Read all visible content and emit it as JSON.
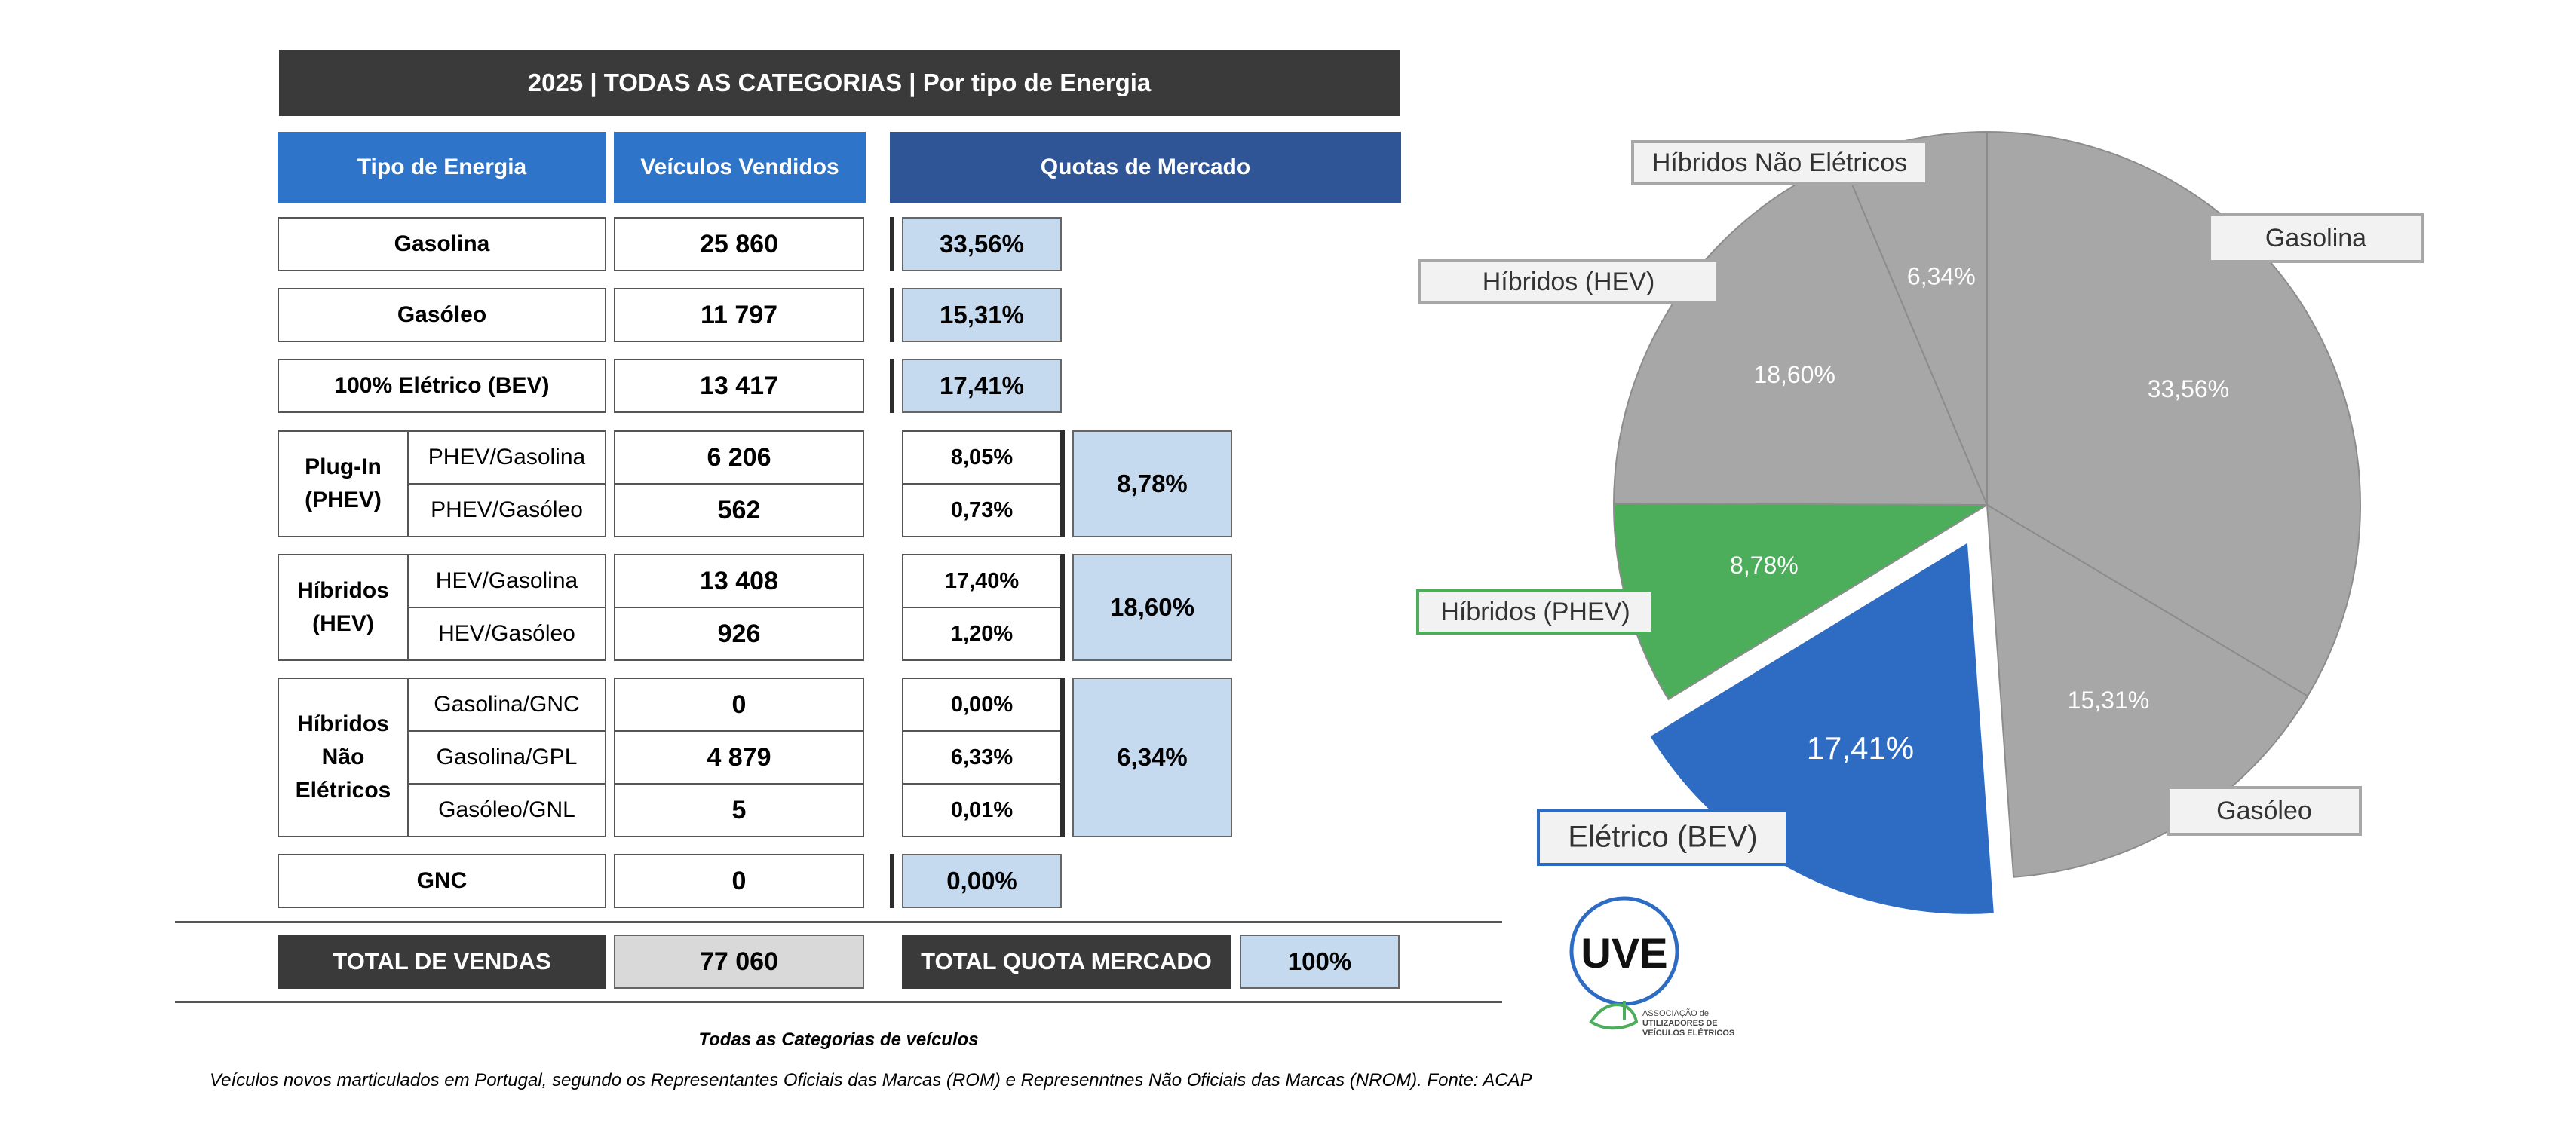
{
  "table": {
    "title": "2025 | TODAS AS CATEGORIAS | Por tipo de Energia",
    "headers": {
      "tipo": "Tipo de Energia",
      "vendidos": "Veículos Vendidos",
      "quotas": "Quotas de Mercado"
    },
    "gasolina": {
      "label": "Gasolina",
      "sold": "25 860",
      "share": "33,56%"
    },
    "gasoleo": {
      "label": "Gasóleo",
      "sold": "11 797",
      "share": "15,31%"
    },
    "bev": {
      "label": "100% Elétrico (BEV)",
      "sold": "13 417",
      "share": "17,41%"
    },
    "phev": {
      "group_line1": "Plug-In",
      "group_line2": "(PHEV)",
      "total_share": "8,78%",
      "rows": [
        {
          "label": "PHEV/Gasolina",
          "sold": "6 206",
          "share": "8,05%"
        },
        {
          "label": "PHEV/Gasóleo",
          "sold": "562",
          "share": "0,73%"
        }
      ]
    },
    "hev": {
      "group_line1": "Híbridos",
      "group_line2": "(HEV)",
      "total_share": "18,60%",
      "rows": [
        {
          "label": "HEV/Gasolina",
          "sold": "13 408",
          "share": "17,40%"
        },
        {
          "label": "HEV/Gasóleo",
          "sold": "926",
          "share": "1,20%"
        }
      ]
    },
    "hne": {
      "group_line1": "Híbridos",
      "group_line2": "Não",
      "group_line3": "Elétricos",
      "total_share": "6,34%",
      "rows": [
        {
          "label": "Gasolina/GNC",
          "sold": "0",
          "share": "0,00%"
        },
        {
          "label": "Gasolina/GPL",
          "sold": "4 879",
          "share": "6,33%"
        },
        {
          "label": "Gasóleo/GNL",
          "sold": "5",
          "share": "0,01%"
        }
      ]
    },
    "gnc": {
      "label": "GNC",
      "sold": "0",
      "share": "0,00%"
    },
    "totals": {
      "sales_label": "TOTAL DE VENDAS",
      "sales_value": "77 060",
      "share_label": "TOTAL QUOTA MERCADO",
      "share_value": "100%"
    }
  },
  "footer": {
    "line1": "Todas as Categorias de veículos",
    "line2": "Veículos novos marticulados em Portugal, segundo os Representantes Oficiais das Marcas (ROM) e Represenntnes Não Oficiais das Marcas (NROM). Fonte: ACAP"
  },
  "logo": {
    "initials": "UVE",
    "text_line1": "ASSOCIAÇÃO de",
    "text_line2": "UTILIZADORES DE",
    "text_line3": "VEÍCULOS ELÉTRICOS"
  },
  "colors": {
    "grey": "#a8a7a7",
    "green": "#4cad5b",
    "blue": "#2e6cc4"
  },
  "chart_data": {
    "type": "pie",
    "slices": [
      {
        "name": "Gasolina",
        "label": "Gasolina",
        "value": 33.56,
        "value_label": "33,56%",
        "color": "#a8a7a7",
        "exploded": false
      },
      {
        "name": "Gasóleo",
        "label": "Gasóleo",
        "value": 15.31,
        "value_label": "15,31%",
        "color": "#a8a7a7",
        "exploded": false
      },
      {
        "name": "Elétrico (BEV)",
        "label": "Elétrico (BEV)",
        "value": 17.41,
        "value_label": "17,41%",
        "color": "#2e6cc4",
        "exploded": true
      },
      {
        "name": "Híbridos (PHEV)",
        "label": "Híbridos (PHEV)",
        "value": 8.78,
        "value_label": "8,78%",
        "color": "#4cad5b",
        "exploded": false
      },
      {
        "name": "Híbridos (HEV)",
        "label": "Híbridos (HEV)",
        "value": 18.6,
        "value_label": "18,60%",
        "color": "#a8a7a7",
        "exploded": false
      },
      {
        "name": "Híbridos Não Elétricos",
        "label": "Híbridos Não Elétricos",
        "value": 6.34,
        "value_label": "6,34%",
        "color": "#a8a7a7",
        "exploded": false
      }
    ]
  }
}
